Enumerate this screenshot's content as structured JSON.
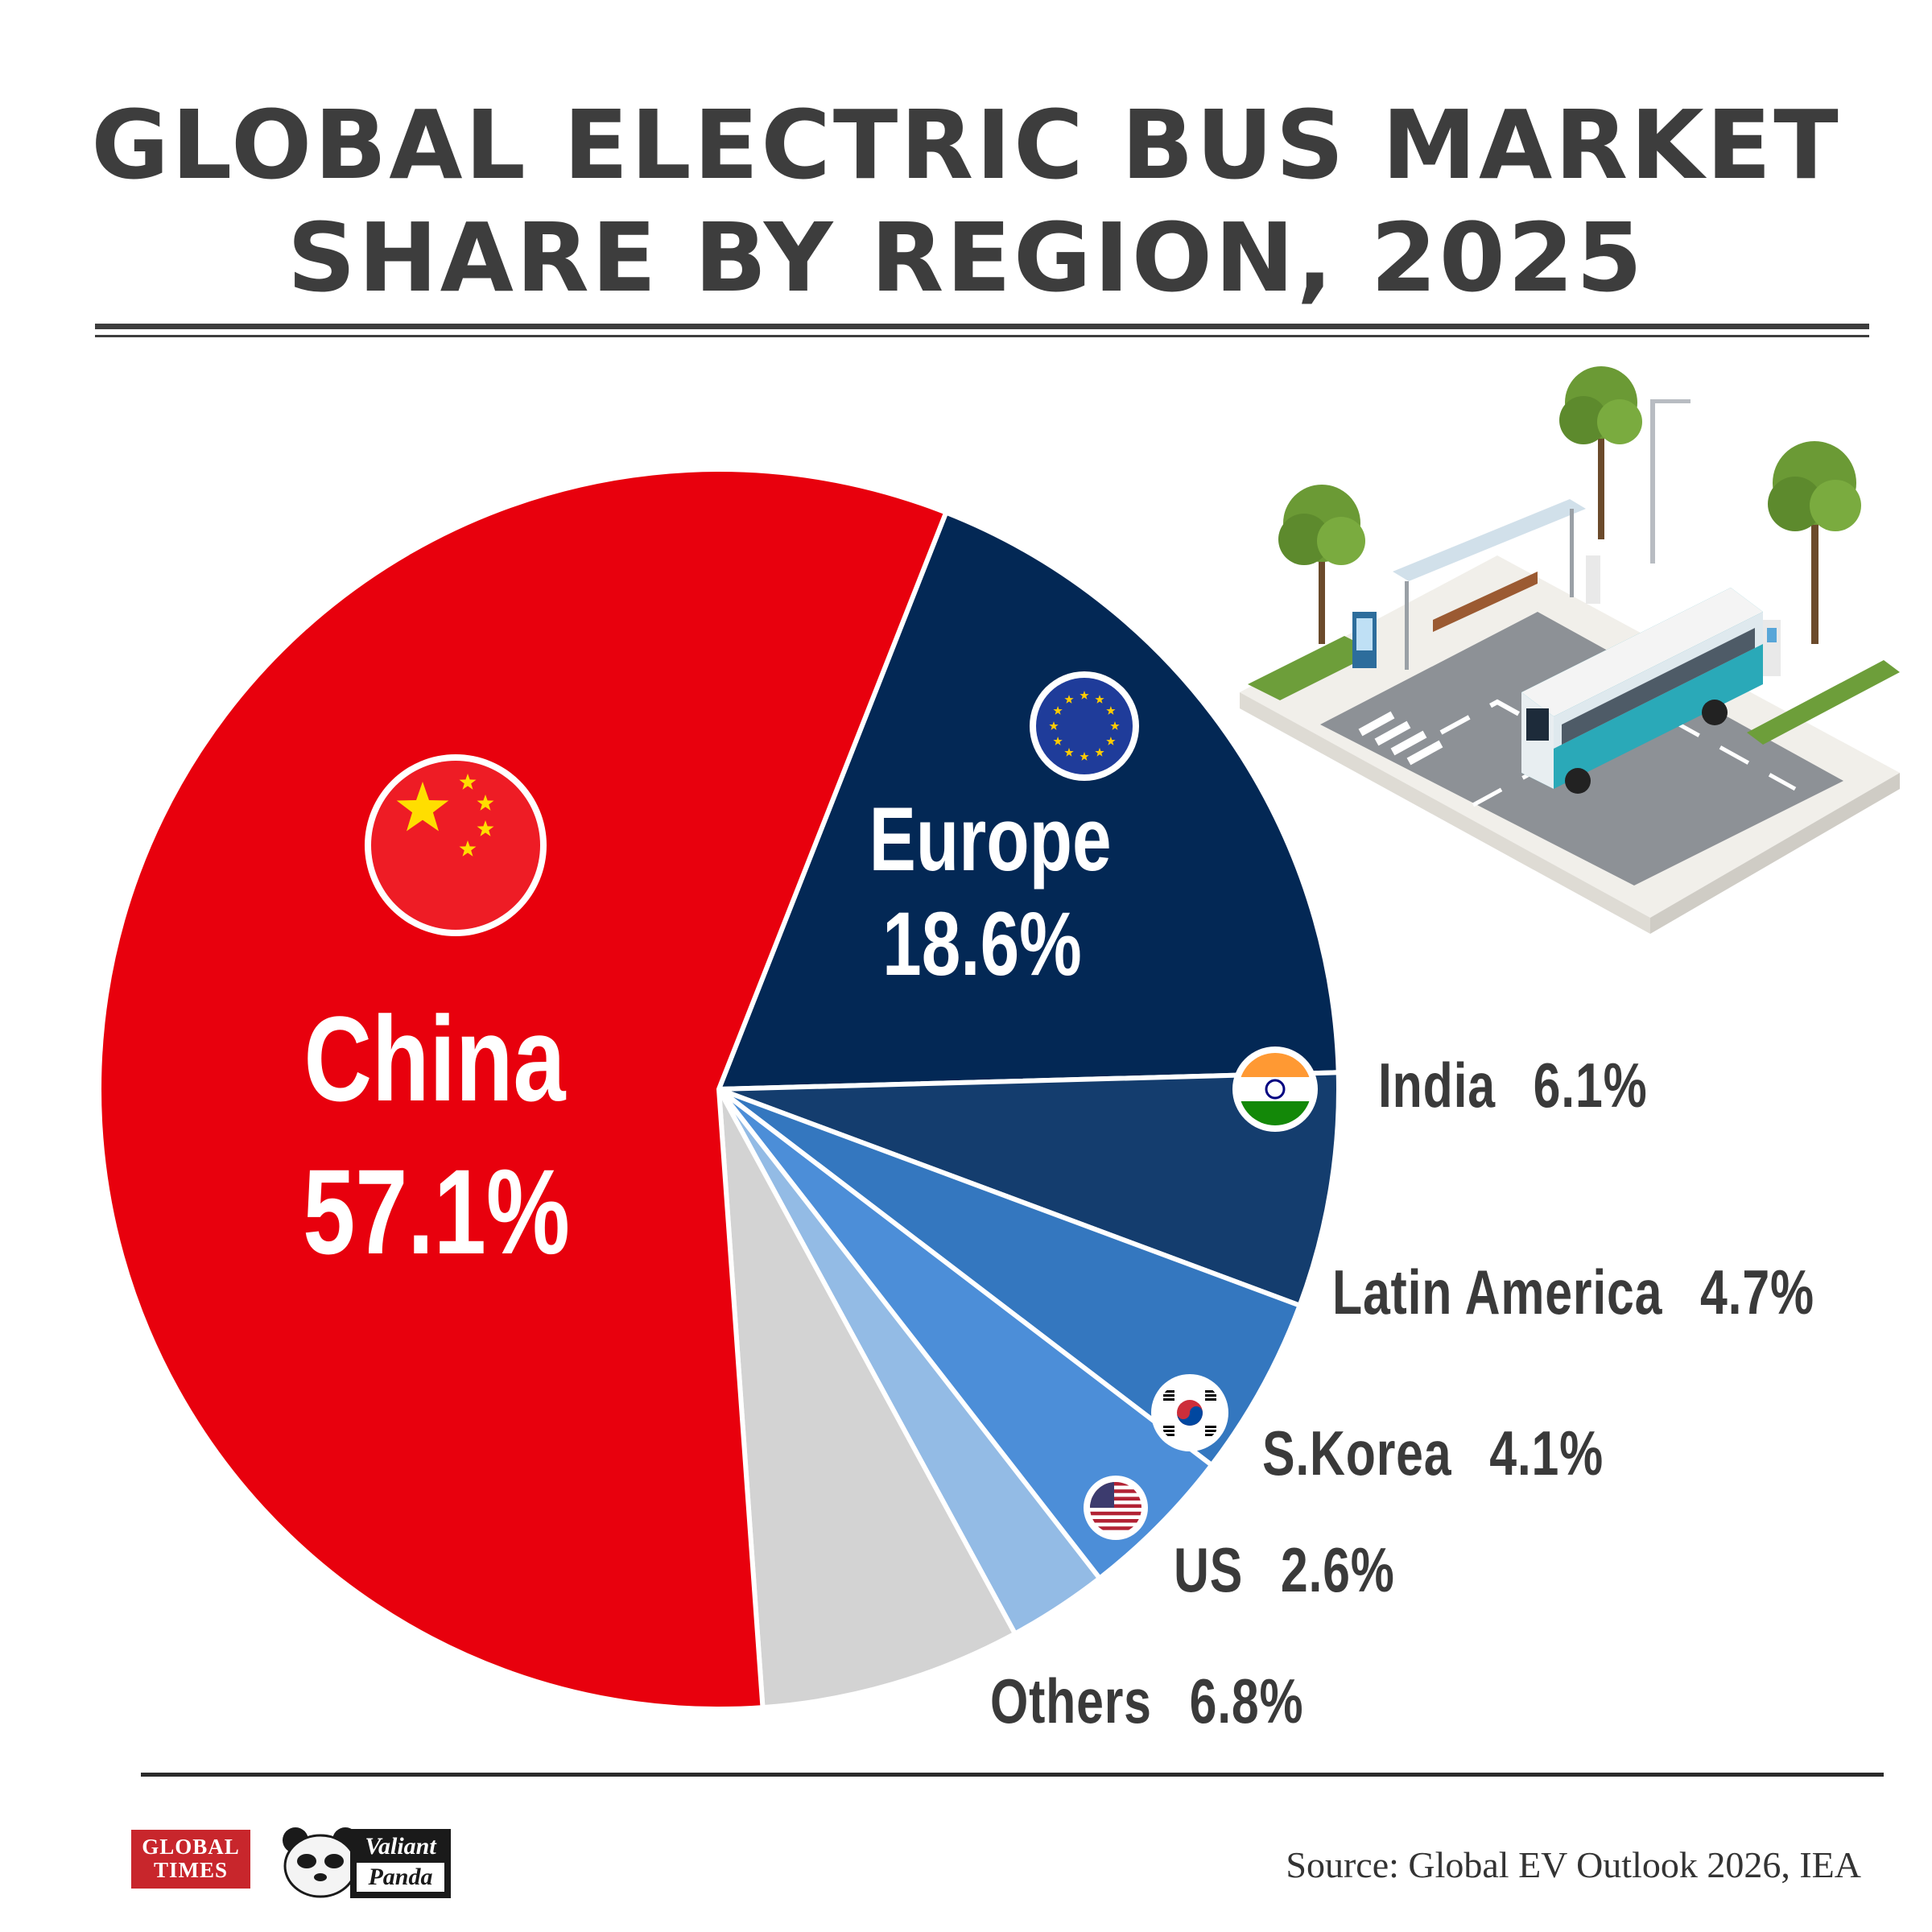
{
  "title_lines": [
    "GLOBAL ELECTRIC BUS MARKET",
    "SHARE BY REGION, 2025"
  ],
  "source": "Source: Global EV Outlook 2026, IEA",
  "logos": {
    "global_times_line1": "GLOBAL",
    "global_times_line2": "TIMES",
    "valiant_panda_line1": "Valiant",
    "valiant_panda_line2": "Panda"
  },
  "colors": {
    "china": "#e8000d",
    "europe": "#032855",
    "india": "#143d6e",
    "latin_america": "#3477bf",
    "s_korea": "#4c8ed8",
    "us": "#93bbe5",
    "others": "#d3d3d3"
  },
  "chart_data": {
    "type": "pie",
    "title": "GLOBAL ELECTRIC BUS MARKET SHARE BY REGION, 2025",
    "labels": [
      "China",
      "Europe",
      "India",
      "Latin America",
      "S.Korea",
      "US",
      "Others"
    ],
    "values": [
      57.1,
      18.6,
      6.1,
      4.7,
      4.1,
      2.6,
      6.8
    ],
    "value_labels": [
      "57.1%",
      "18.6%",
      "6.1%",
      "4.7%",
      "4.1%",
      "2.6%",
      "6.8%"
    ],
    "icons": [
      "china-flag-icon",
      "eu-flag-icon",
      "india-flag-icon",
      null,
      "south-korea-flag-icon",
      "us-flag-icon",
      null
    ]
  }
}
